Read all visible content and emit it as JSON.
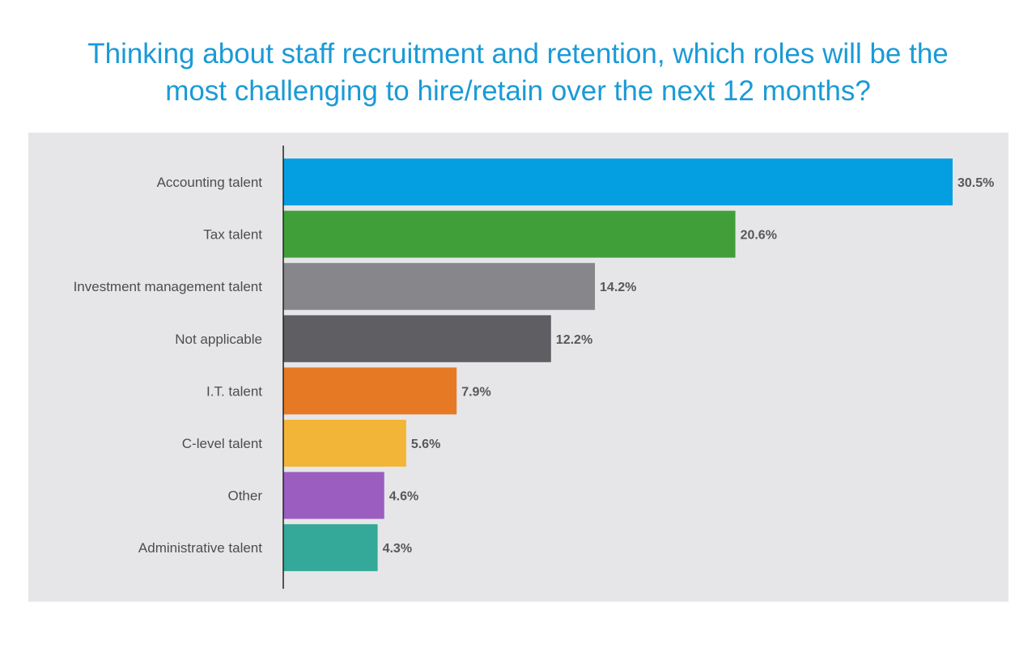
{
  "title": {
    "line1": "Thinking about staff recruitment and retention, which roles will be the",
    "line2": "most challenging to hire/retain over the next 12 months?"
  },
  "colors": {
    "title": "#1a9ad6",
    "panel_background": "#e6e6e8",
    "axis_line": "#222222"
  },
  "chart_data": {
    "type": "bar",
    "orientation": "horizontal",
    "title": "Thinking about staff recruitment and retention, which roles will be the most challenging to hire/retain over the next 12 months?",
    "categories": [
      "Accounting talent",
      "Tax talent",
      "Investment management talent",
      "Not applicable",
      "I.T. talent",
      "C-level talent",
      "Other",
      "Administrative talent"
    ],
    "values": [
      30.5,
      20.6,
      14.2,
      12.2,
      7.9,
      5.6,
      4.6,
      4.3
    ],
    "value_labels": [
      "30.5%",
      "20.6%",
      "14.2%",
      "12.2%",
      "7.9%",
      "5.6%",
      "4.6%",
      "4.3%"
    ],
    "bar_colors": [
      "#049fe0",
      "#419f3a",
      "#87878b",
      "#5e5e63",
      "#e67a24",
      "#f2b538",
      "#9c5dc1",
      "#34a899"
    ],
    "xlim": [
      0,
      30.5
    ],
    "grid": false,
    "legend": "none",
    "xlabel": "",
    "ylabel": ""
  }
}
